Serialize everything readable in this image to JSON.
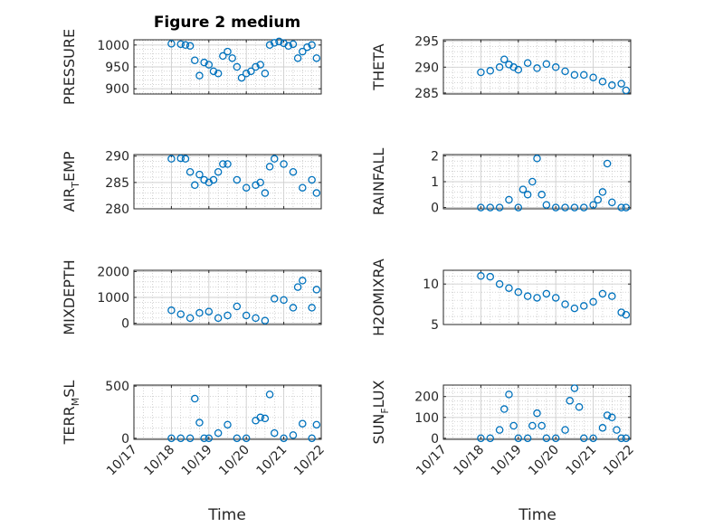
{
  "figure": {
    "title": "Figure 2 medium",
    "xlabel": "Time"
  },
  "colors": {
    "marker": "#0072bd",
    "grid": "#b8b8b8",
    "axis": "#262626"
  },
  "chart_data": [
    {
      "type": "scatter",
      "ylabel": "PRESSURE",
      "ylabel_sub": "",
      "ylabel_tail": "",
      "ylim": [
        888,
        1012
      ],
      "yticks": [
        900,
        950,
        1000
      ],
      "x": [
        "10/18 00:00",
        "10/18 06:00",
        "10/18 09:00",
        "10/18 12:00",
        "10/18 15:00",
        "10/18 18:00",
        "10/18 21:00",
        "10/19 00:00",
        "10/19 03:00",
        "10/19 06:00",
        "10/19 09:00",
        "10/19 12:00",
        "10/19 15:00",
        "10/19 18:00",
        "10/19 21:00",
        "10/20 00:00",
        "10/20 03:00",
        "10/20 06:00",
        "10/20 09:00",
        "10/20 12:00",
        "10/20 15:00",
        "10/20 18:00",
        "10/20 21:00",
        "10/21 00:00",
        "10/21 03:00",
        "10/21 06:00",
        "10/21 09:00",
        "10/21 12:00",
        "10/21 15:00",
        "10/21 18:00",
        "10/21 21:00"
      ],
      "y": [
        1003,
        1002,
        1000,
        998,
        965,
        930,
        960,
        955,
        940,
        935,
        975,
        985,
        970,
        950,
        925,
        935,
        940,
        950,
        955,
        935,
        1000,
        1005,
        1008,
        1004,
        998,
        1002,
        970,
        985,
        995,
        1000,
        970
      ]
    },
    {
      "type": "scatter",
      "ylabel": "THETA",
      "ylabel_sub": "",
      "ylabel_tail": "",
      "ylim": [
        284.8,
        295.3
      ],
      "yticks": [
        285,
        290,
        295
      ],
      "x": [
        "10/18 00:00",
        "10/18 06:00",
        "10/18 12:00",
        "10/18 15:00",
        "10/18 18:00",
        "10/18 21:00",
        "10/19 00:00",
        "10/19 06:00",
        "10/19 12:00",
        "10/19 18:00",
        "10/20 00:00",
        "10/20 06:00",
        "10/20 12:00",
        "10/20 18:00",
        "10/21 00:00",
        "10/21 06:00",
        "10/21 12:00",
        "10/21 18:00",
        "10/21 21:00"
      ],
      "y": [
        289,
        289.3,
        290,
        291.5,
        290.5,
        290,
        289.5,
        290.8,
        289.8,
        290.6,
        290,
        289.2,
        288.5,
        288.5,
        288,
        287.2,
        286.5,
        286.8,
        285.5
      ]
    },
    {
      "type": "scatter",
      "ylabel": "AIR",
      "ylabel_sub": "T",
      "ylabel_tail": "EMP",
      "ylim": [
        280,
        290.3
      ],
      "yticks": [
        280,
        285,
        290
      ],
      "x": [
        "10/18 00:00",
        "10/18 06:00",
        "10/18 09:00",
        "10/18 12:00",
        "10/18 15:00",
        "10/18 18:00",
        "10/18 21:00",
        "10/19 00:00",
        "10/19 03:00",
        "10/19 06:00",
        "10/19 09:00",
        "10/19 12:00",
        "10/19 18:00",
        "10/20 00:00",
        "10/20 06:00",
        "10/20 09:00",
        "10/20 12:00",
        "10/20 15:00",
        "10/20 18:00",
        "10/21 00:00",
        "10/21 06:00",
        "10/21 12:00",
        "10/21 18:00",
        "10/21 21:00"
      ],
      "y": [
        289.5,
        289.6,
        289.5,
        287,
        284.5,
        286.5,
        285.5,
        285,
        285.5,
        287,
        288.5,
        288.5,
        285.5,
        284,
        284.5,
        285,
        283,
        288,
        289.5,
        288.5,
        287,
        284,
        285.5,
        283
      ]
    },
    {
      "type": "scatter",
      "ylabel": "RAINFALL",
      "ylabel_sub": "",
      "ylabel_tail": "",
      "ylim": [
        -0.05,
        2.05
      ],
      "yticks": [
        0,
        1,
        2
      ],
      "x": [
        "10/18 00:00",
        "10/18 06:00",
        "10/18 12:00",
        "10/18 18:00",
        "10/19 00:00",
        "10/19 03:00",
        "10/19 06:00",
        "10/19 09:00",
        "10/19 12:00",
        "10/19 15:00",
        "10/19 18:00",
        "10/20 00:00",
        "10/20 06:00",
        "10/20 12:00",
        "10/20 18:00",
        "10/21 00:00",
        "10/21 03:00",
        "10/21 06:00",
        "10/21 09:00",
        "10/21 12:00",
        "10/21 18:00",
        "10/21 21:00"
      ],
      "y": [
        0,
        0,
        0,
        0.3,
        0,
        0.7,
        0.5,
        1.0,
        1.9,
        0.5,
        0.1,
        0,
        0,
        0,
        0,
        0.1,
        0.3,
        0.6,
        1.7,
        0.2,
        0,
        0
      ]
    },
    {
      "type": "scatter",
      "ylabel": "MIXDEPTH",
      "ylabel_sub": "",
      "ylabel_tail": "",
      "ylim": [
        -50,
        2050
      ],
      "yticks": [
        0,
        1000,
        2000
      ],
      "x": [
        "10/18 00:00",
        "10/18 06:00",
        "10/18 12:00",
        "10/18 18:00",
        "10/19 00:00",
        "10/19 06:00",
        "10/19 12:00",
        "10/19 18:00",
        "10/20 00:00",
        "10/20 06:00",
        "10/20 12:00",
        "10/20 18:00",
        "10/21 00:00",
        "10/21 06:00",
        "10/21 09:00",
        "10/21 12:00",
        "10/21 18:00",
        "10/21 21:00"
      ],
      "y": [
        500,
        350,
        200,
        400,
        450,
        200,
        300,
        650,
        300,
        200,
        100,
        950,
        900,
        600,
        1400,
        1650,
        600,
        1300
      ]
    },
    {
      "type": "scatter",
      "ylabel": "H2OMIXRA",
      "ylabel_sub": "",
      "ylabel_tail": "",
      "ylim": [
        5,
        11.7
      ],
      "yticks": [
        5,
        10
      ],
      "x": [
        "10/18 00:00",
        "10/18 06:00",
        "10/18 12:00",
        "10/18 18:00",
        "10/19 00:00",
        "10/19 06:00",
        "10/19 12:00",
        "10/19 18:00",
        "10/20 00:00",
        "10/20 06:00",
        "10/20 12:00",
        "10/20 18:00",
        "10/21 00:00",
        "10/21 06:00",
        "10/21 12:00",
        "10/21 18:00",
        "10/21 21:00"
      ],
      "y": [
        11,
        10.9,
        10,
        9.5,
        9,
        8.5,
        8.3,
        8.8,
        8.3,
        7.5,
        7,
        7.3,
        7.8,
        8.8,
        8.5,
        6.5,
        6.2
      ]
    },
    {
      "type": "scatter",
      "ylabel": "TERR",
      "ylabel_sub": "M",
      "ylabel_tail": "SL",
      "ylim": [
        -10,
        510
      ],
      "yticks": [
        0,
        500
      ],
      "x": [
        "10/18 00:00",
        "10/18 06:00",
        "10/18 12:00",
        "10/18 15:00",
        "10/18 18:00",
        "10/18 21:00",
        "10/19 00:00",
        "10/19 06:00",
        "10/19 12:00",
        "10/19 18:00",
        "10/20 00:00",
        "10/20 06:00",
        "10/20 09:00",
        "10/20 12:00",
        "10/20 15:00",
        "10/20 18:00",
        "10/21 00:00",
        "10/21 06:00",
        "10/21 12:00",
        "10/21 18:00",
        "10/21 21:00"
      ],
      "y": [
        0,
        0,
        0,
        380,
        150,
        0,
        0,
        50,
        130,
        0,
        0,
        170,
        200,
        190,
        420,
        50,
        0,
        30,
        140,
        0,
        130
      ]
    },
    {
      "type": "scatter",
      "ylabel": "SUN",
      "ylabel_sub": "F",
      "ylabel_tail": "LUX",
      "ylim": [
        -5,
        255
      ],
      "yticks": [
        0,
        100,
        200
      ],
      "x": [
        "10/18 00:00",
        "10/18 06:00",
        "10/18 12:00",
        "10/18 15:00",
        "10/18 18:00",
        "10/18 21:00",
        "10/19 00:00",
        "10/19 06:00",
        "10/19 09:00",
        "10/19 12:00",
        "10/19 15:00",
        "10/19 18:00",
        "10/20 00:00",
        "10/20 06:00",
        "10/20 09:00",
        "10/20 12:00",
        "10/20 15:00",
        "10/20 18:00",
        "10/21 00:00",
        "10/21 06:00",
        "10/21 09:00",
        "10/21 12:00",
        "10/21 15:00",
        "10/21 18:00",
        "10/21 21:00"
      ],
      "y": [
        0,
        0,
        40,
        140,
        210,
        60,
        0,
        0,
        60,
        120,
        60,
        0,
        0,
        40,
        180,
        240,
        150,
        0,
        0,
        50,
        110,
        100,
        40,
        0,
        0
      ]
    }
  ],
  "xaxis": {
    "range": [
      "10/17 00:00",
      "10/22 00:00"
    ],
    "ticks": [
      "10/17",
      "10/18",
      "10/19",
      "10/20",
      "10/21",
      "10/22"
    ]
  }
}
